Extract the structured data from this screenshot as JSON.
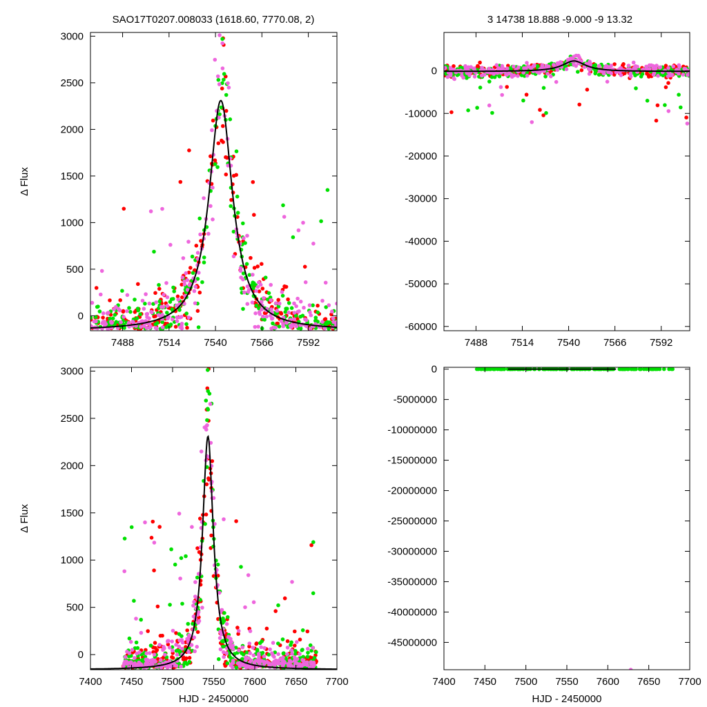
{
  "titles": {
    "left": "SAO17T0207.008033 (1618.60, 7770.08,    2)",
    "right": "3   14738   18.888   -9.000   -9   13.32"
  },
  "colors": {
    "series_a": "#ff0000",
    "series_b": "#00e000",
    "series_c": "#ee66dd",
    "model": "#000000",
    "frame": "#000000"
  },
  "chart_data": [
    {
      "type": "scatter",
      "panel": "top-left",
      "title": "",
      "xlabel": "",
      "ylabel": "Δ Flux",
      "xlim": [
        7470,
        7608
      ],
      "ylim": [
        -160,
        3040
      ],
      "xticks": [
        7488,
        7514,
        7540,
        7566,
        7592
      ],
      "yticks": [
        0,
        500,
        1000,
        1500,
        2000,
        2500,
        3000
      ],
      "grid": false,
      "model": {
        "type": "line",
        "peak_x": 7543,
        "peak_y": 2310,
        "baseline": -160,
        "width": 8
      },
      "series": [
        {
          "color": "series_a",
          "center": 7546,
          "spread": 10,
          "peak": 2300
        },
        {
          "color": "series_b",
          "center": 7542,
          "spread": 8,
          "peak": 2300
        },
        {
          "color": "series_c",
          "center": 7544,
          "spread": 9,
          "peak": 3000
        }
      ]
    },
    {
      "type": "scatter",
      "panel": "top-right",
      "title": "",
      "xlabel": "",
      "ylabel": "",
      "xlim": [
        7470,
        7608
      ],
      "ylim": [
        -61000,
        9000
      ],
      "xticks": [
        7488,
        7514,
        7540,
        7566,
        7592
      ],
      "yticks": [
        0,
        -10000,
        -20000,
        -30000,
        -40000,
        -50000,
        -60000
      ],
      "grid": false,
      "model": {
        "type": "line",
        "peak_x": 7543,
        "peak_y": 2310,
        "baseline": -160,
        "width": 8
      },
      "series": [
        {
          "color": "series_a",
          "center": 7546,
          "spread": 10,
          "peak": 2300
        },
        {
          "color": "series_b",
          "center": 7542,
          "spread": 8,
          "peak": 2300
        },
        {
          "color": "series_c",
          "center": 7544,
          "spread": 9,
          "peak": 3000
        }
      ]
    },
    {
      "type": "scatter",
      "panel": "bottom-left",
      "title": "",
      "xlabel": "HJD - 2450000",
      "ylabel": "Δ Flux",
      "xlim": [
        7400,
        7700
      ],
      "ylim": [
        -160,
        3040
      ],
      "xticks": [
        7400,
        7450,
        7500,
        7550,
        7600,
        7650,
        7700
      ],
      "yticks": [
        0,
        500,
        1000,
        1500,
        2000,
        2500,
        3000
      ],
      "grid": false,
      "model": {
        "type": "line",
        "peak_x": 7543,
        "peak_y": 2310,
        "baseline": -160,
        "width": 8
      },
      "series": [
        {
          "color": "series_a",
          "range": [
            7440,
            7675
          ]
        },
        {
          "color": "series_b",
          "range": [
            7440,
            7675
          ]
        },
        {
          "color": "series_c",
          "range": [
            7440,
            7675
          ]
        }
      ]
    },
    {
      "type": "scatter",
      "panel": "bottom-right",
      "title": "",
      "xlabel": "HJD - 2450000",
      "ylabel": "",
      "xlim": [
        7400,
        7700
      ],
      "ylim": [
        -49500000,
        300000
      ],
      "xticks": [
        7400,
        7450,
        7500,
        7550,
        7600,
        7650,
        7700
      ],
      "yticks": [
        0,
        -5000000,
        -10000000,
        -15000000,
        -20000000,
        -25000000,
        -30000000,
        -35000000,
        -40000000,
        -45000000
      ],
      "grid": false,
      "model": {
        "type": "line",
        "from_x": 7478,
        "to_x": 7610,
        "y": 0
      },
      "series": [
        {
          "color": "series_b",
          "range": [
            7440,
            7680
          ],
          "y": 0
        },
        {
          "color": "series_c",
          "outlier_x": 7628,
          "outlier_y": -49500000
        }
      ]
    }
  ]
}
